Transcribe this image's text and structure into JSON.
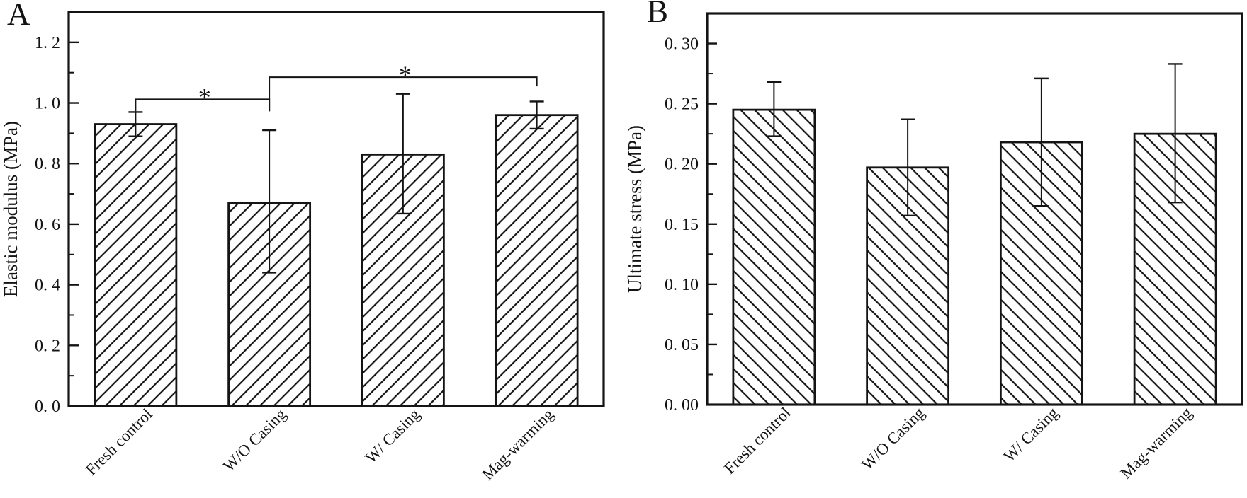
{
  "figure": {
    "background_color": "#ffffff",
    "ink_color": "#141414"
  },
  "chart_data": [
    {
      "type": "bar",
      "panel_letter": "A",
      "title": "",
      "xlabel": "",
      "ylabel": "Elastic modulus（MPa）",
      "categories": [
        "Fresh control",
        "W/O Casing",
        "W/ Casing",
        "Mag-warming"
      ],
      "values": [
        0.93,
        0.67,
        0.83,
        0.96
      ],
      "error_up": [
        0.04,
        0.24,
        0.2,
        0.045
      ],
      "error_down": [
        0.04,
        0.23,
        0.195,
        0.045
      ],
      "ylim": [
        0,
        1.3
      ],
      "yticks": [
        {
          "value": 0.0,
          "label": "0. 0"
        },
        {
          "value": 0.2,
          "label": "0. 2"
        },
        {
          "value": 0.4,
          "label": "0. 4"
        },
        {
          "value": 0.6,
          "label": "0. 6"
        },
        {
          "value": 0.8,
          "label": "0. 8"
        },
        {
          "value": 1.0,
          "label": "1. 0"
        },
        {
          "value": 1.2,
          "label": "1. 2"
        }
      ],
      "yminor_step": 0.1,
      "grid": false,
      "legend": null,
      "hatch": "/",
      "bar_fill": "#ffffff",
      "significance": [
        {
          "from": 0,
          "to": 1,
          "label": "*",
          "line_y": 1.012
        },
        {
          "from": 1,
          "to": 3,
          "label": "*",
          "line_y": 1.085
        }
      ]
    },
    {
      "type": "bar",
      "panel_letter": "B",
      "title": "",
      "xlabel": "",
      "ylabel": "Ultimate stress（MPa）",
      "categories": [
        "Fresh control",
        "W/O Casing",
        "W/ Casing",
        "Mag-warming"
      ],
      "values": [
        0.245,
        0.197,
        0.218,
        0.225
      ],
      "error_up": [
        0.023,
        0.04,
        0.053,
        0.058
      ],
      "error_down": [
        0.022,
        0.04,
        0.053,
        0.057
      ],
      "ylim": [
        0,
        0.325
      ],
      "yticks": [
        {
          "value": 0.0,
          "label": "0. 00"
        },
        {
          "value": 0.05,
          "label": "0. 05"
        },
        {
          "value": 0.1,
          "label": "0. 10"
        },
        {
          "value": 0.15,
          "label": "0. 15"
        },
        {
          "value": 0.2,
          "label": "0. 20"
        },
        {
          "value": 0.25,
          "label": "0. 25"
        },
        {
          "value": 0.3,
          "label": "0. 30"
        }
      ],
      "yminor_step": 0.025,
      "grid": false,
      "legend": null,
      "hatch": "\\",
      "bar_fill": "#ffffff",
      "significance": []
    }
  ]
}
